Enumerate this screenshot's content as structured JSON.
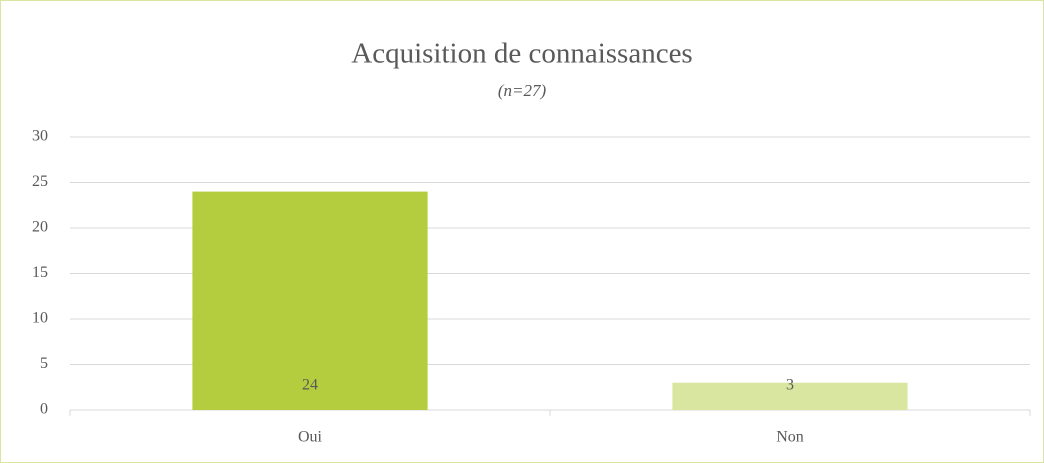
{
  "chart_data": {
    "type": "bar",
    "title": "Acquisition de connaissances",
    "subtitle": "(n=27)",
    "categories": [
      "Oui",
      "Non"
    ],
    "values": [
      24,
      3
    ],
    "colors": [
      "#b3cd3e",
      "#d9e6a0"
    ],
    "ylim": [
      0,
      30
    ],
    "yticks": [
      0,
      5,
      10,
      15,
      20,
      25,
      30
    ],
    "grid": true
  }
}
